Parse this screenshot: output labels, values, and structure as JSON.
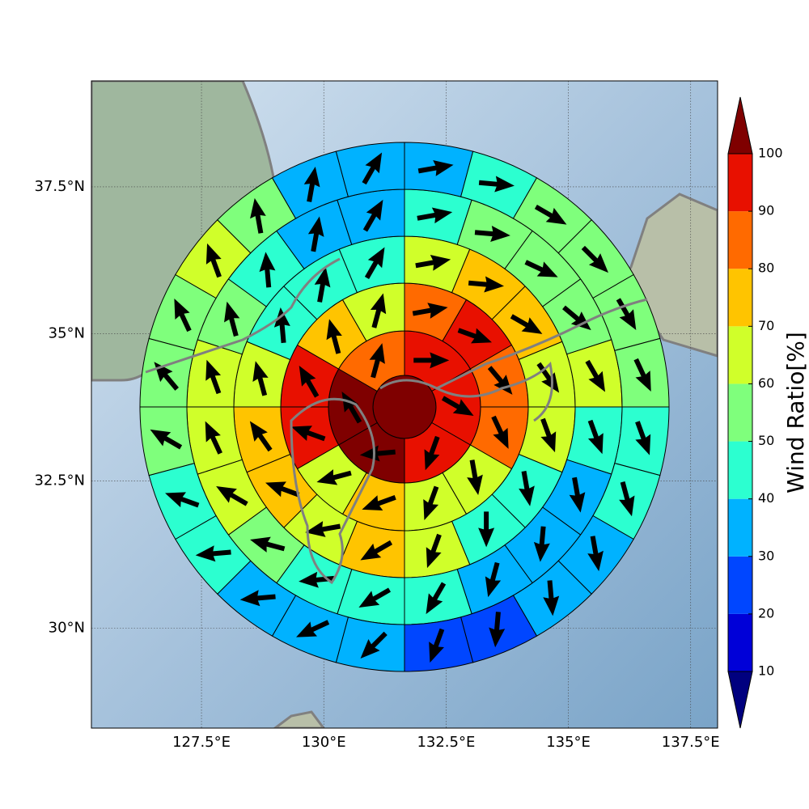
{
  "chart_data": {
    "type": "wind-rose-map",
    "xlim": [
      125.25,
      138.05
    ],
    "ylim": [
      28.3,
      39.3
    ],
    "xticks": [
      {
        "value": 127.5,
        "label": "127.5°E"
      },
      {
        "value": 130,
        "label": "130°E"
      },
      {
        "value": 132.5,
        "label": "132.5°E"
      },
      {
        "value": 135,
        "label": "135°E"
      },
      {
        "value": 137.5,
        "label": "137.5°E"
      }
    ],
    "yticks": [
      {
        "value": 30,
        "label": "30°N"
      },
      {
        "value": 32.5,
        "label": "32.5°N"
      },
      {
        "value": 35,
        "label": "35°N"
      },
      {
        "value": 37.5,
        "label": "37.5°N"
      }
    ],
    "grid": true,
    "colorbar": {
      "label": "Wind Ratio[%]",
      "ticks": [
        10,
        20,
        30,
        40,
        50,
        60,
        70,
        80,
        90,
        100
      ],
      "colors": [
        "#00007f",
        "#0000d8",
        "#0046ff",
        "#00b2ff",
        "#2cffd0",
        "#7fff7c",
        "#d0ff2a",
        "#ffc400",
        "#ff6a00",
        "#e81000",
        "#7f0000"
      ]
    },
    "rings": [
      {
        "values": [
          105
        ]
      },
      {
        "values": [
          95,
          95,
          95,
          105,
          105,
          85
        ],
        "directions": [
          90,
          120,
          200,
          265,
          330,
          15
        ]
      },
      {
        "values": [
          85,
          95,
          85,
          85,
          65,
          65,
          75,
          65,
          95,
          95,
          75,
          65
        ],
        "directions": [
          80,
          110,
          140,
          155,
          170,
          200,
          250,
          255,
          290,
          330,
          345,
          15
        ]
      },
      {
        "values": [
          65,
          75,
          75,
          65,
          65,
          45,
          45,
          65,
          75,
          65,
          75,
          75,
          65,
          45,
          45,
          45
        ],
        "directions": [
          80,
          95,
          120,
          145,
          160,
          170,
          180,
          200,
          240,
          260,
          290,
          325,
          345,
          355,
          10,
          30
        ]
      },
      {
        "values": [
          45,
          55,
          55,
          55,
          65,
          45,
          35,
          35,
          35,
          45,
          45,
          45,
          55,
          65,
          65,
          65,
          55,
          45,
          35,
          35
        ],
        "directions": [
          80,
          95,
          115,
          130,
          150,
          160,
          170,
          185,
          195,
          210,
          240,
          265,
          285,
          300,
          335,
          340,
          345,
          355,
          10,
          30
        ]
      },
      {
        "values": [
          35,
          45,
          55,
          55,
          55,
          55,
          45,
          45,
          35,
          35,
          25,
          25,
          35,
          35,
          35,
          45,
          45,
          55,
          55,
          55,
          65,
          55,
          35,
          35
        ],
        "directions": [
          80,
          95,
          120,
          135,
          150,
          155,
          160,
          165,
          170,
          175,
          185,
          200,
          225,
          245,
          265,
          265,
          290,
          300,
          320,
          335,
          340,
          350,
          10,
          30
        ]
      }
    ]
  }
}
